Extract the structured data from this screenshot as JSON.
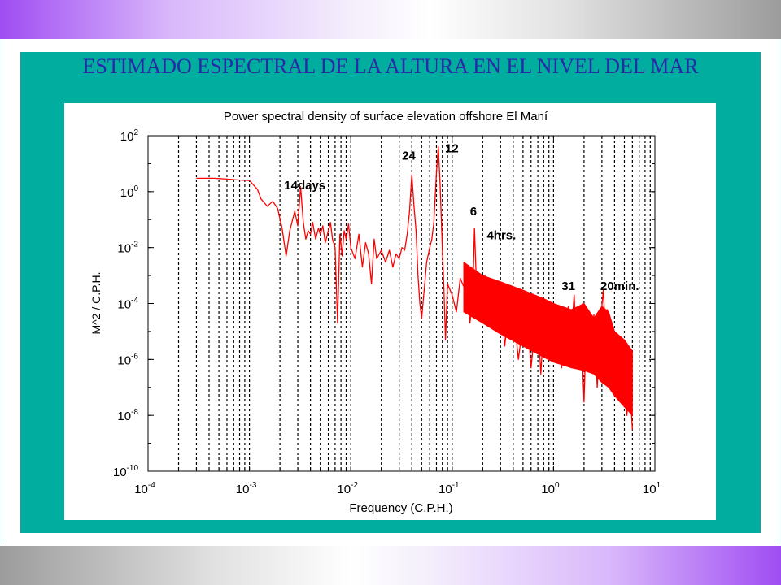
{
  "slide": {
    "title": "ESTIMADO ESPECTRAL DE  LA  ALTURA  EN EL NIVEL DEL MAR"
  },
  "colors": {
    "teal_panel": "#00ad9e",
    "title_text": "#2a2aa8",
    "series": "#ff0000"
  },
  "chart_data": {
    "type": "line",
    "title": "Power spectral density of surface elevation offshore El Maní",
    "xlabel": "Frequency (C.P.H.)",
    "ylabel": "M^2 / C.P.H.",
    "xscale": "log",
    "yscale": "log",
    "xlim": [
      0.0001,
      10
    ],
    "ylim": [
      1e-10,
      100
    ],
    "grid": "vertical dashed lines at decade subdivisions",
    "xticks": [
      {
        "value": 0.0001,
        "base": "10",
        "exp": "-4"
      },
      {
        "value": 0.001,
        "base": "10",
        "exp": "-3"
      },
      {
        "value": 0.01,
        "base": "10",
        "exp": "-2"
      },
      {
        "value": 0.1,
        "base": "10",
        "exp": "-1"
      },
      {
        "value": 1,
        "base": "10",
        "exp": "0"
      },
      {
        "value": 10,
        "base": "10",
        "exp": "1"
      }
    ],
    "yticks": [
      {
        "value": 100,
        "base": "10",
        "exp": "2"
      },
      {
        "value": 1,
        "base": "10",
        "exp": "0"
      },
      {
        "value": 0.01,
        "base": "10",
        "exp": "-2"
      },
      {
        "value": 0.0001,
        "base": "10",
        "exp": "-4"
      },
      {
        "value": 1e-06,
        "base": "10",
        "exp": "-6"
      },
      {
        "value": 1e-08,
        "base": "10",
        "exp": "-8"
      },
      {
        "value": 1e-10,
        "base": "10",
        "exp": "-10"
      }
    ],
    "series": [
      {
        "color": "#ff0000",
        "x": [
          0.0003,
          0.00045,
          0.0006,
          0.0008,
          0.001,
          0.0012,
          0.0013,
          0.0015,
          0.0017,
          0.0019,
          0.0021,
          0.0023,
          0.0025,
          0.0028,
          0.003,
          0.0032,
          0.0034,
          0.0036,
          0.0038,
          0.004,
          0.0042,
          0.0045,
          0.0048,
          0.005,
          0.0053,
          0.0056,
          0.006,
          0.0063,
          0.0066,
          0.007,
          0.0074,
          0.0078,
          0.0082,
          0.0086,
          0.009,
          0.0095,
          0.01,
          0.011,
          0.012,
          0.013,
          0.014,
          0.015,
          0.016,
          0.017,
          0.018,
          0.02,
          0.022,
          0.024,
          0.026,
          0.028,
          0.03,
          0.032,
          0.034,
          0.036,
          0.038,
          0.04,
          0.042,
          0.044,
          0.046,
          0.048,
          0.05,
          0.053,
          0.056,
          0.06,
          0.063,
          0.066,
          0.07,
          0.073,
          0.076,
          0.08,
          0.083,
          0.086,
          0.09,
          0.1,
          0.11,
          0.12,
          0.13,
          0.14,
          0.15,
          0.16,
          0.166,
          0.175,
          0.19,
          0.21,
          0.23,
          0.25,
          0.28,
          0.3,
          0.33,
          0.36,
          0.4,
          0.45,
          0.5,
          0.55,
          0.6,
          0.65,
          0.7,
          0.75,
          0.8,
          0.9,
          1.0,
          1.1,
          1.2,
          1.3,
          1.4,
          1.5,
          1.6,
          1.7,
          1.8,
          1.9,
          2.0,
          2.1,
          2.3,
          2.5,
          2.7,
          2.9,
          3.1,
          3.2,
          3.4,
          3.6,
          3.8,
          4.0,
          4.3,
          4.6,
          5.0,
          5.3,
          5.6,
          6.0
        ],
        "y": [
          3.0,
          3.0,
          2.8,
          2.6,
          2.5,
          1.2,
          0.55,
          0.3,
          0.45,
          0.25,
          0.05,
          0.005,
          0.04,
          0.2,
          0.06,
          1.5,
          0.08,
          0.02,
          0.04,
          0.03,
          0.08,
          0.02,
          0.05,
          0.03,
          0.06,
          0.015,
          0.04,
          0.08,
          0.02,
          0.01,
          2e-05,
          0.03,
          0.005,
          0.04,
          0.02,
          0.07,
          0.01,
          0.004,
          0.03,
          0.002,
          0.015,
          0.006,
          0.0005,
          0.02,
          0.004,
          0.008,
          0.003,
          0.008,
          0.002,
          0.006,
          0.004,
          0.01,
          0.008,
          0.03,
          0.2,
          4.0,
          0.3,
          0.04,
          0.001,
          0.0001,
          3e-05,
          0.0003,
          0.003,
          0.01,
          0.02,
          0.08,
          5.0,
          40.0,
          2.0,
          0.01,
          0.0003,
          5e-06,
          0.0005,
          0.0002,
          5e-05,
          0.0008,
          0.0004,
          0.0003,
          2e-05,
          0.00025,
          0.05,
          0.0002,
          6e-05,
          0.001,
          8e-05,
          2e-05,
          0.0001,
          0.0003,
          3e-06,
          5e-05,
          8e-05,
          1e-06,
          2e-05,
          4e-05,
          5e-07,
          1e-05,
          3e-05,
          3e-07,
          2e-05,
          8e-06,
          1e-06,
          3e-05,
          5e-07,
          1e-05,
          8e-05,
          1e-05,
          0.0002,
          1e-06,
          3e-05,
          4e-06,
          3e-08,
          1e-05,
          2e-06,
          4e-05,
          1e-07,
          2e-05,
          0.0003,
          3e-05,
          6e-05,
          2e-06,
          1e-05,
          1e-07,
          2e-06,
          4e-07,
          2e-07,
          1e-08,
          2e-07,
          3e-09
        ],
        "band_upper": [
          [
            0.13,
            0.003
          ],
          [
            0.2,
            0.001
          ],
          [
            0.3,
            0.0006
          ],
          [
            0.5,
            0.0003
          ],
          [
            0.8,
            0.00015
          ],
          [
            1.0,
            0.0001
          ],
          [
            1.5,
            6e-05
          ],
          [
            2.0,
            0.0001
          ],
          [
            2.5,
            3e-05
          ],
          [
            3.0,
            8e-05
          ],
          [
            3.5,
            5e-05
          ],
          [
            4.0,
            1e-05
          ],
          [
            5.0,
            5e-06
          ],
          [
            6.0,
            2e-06
          ]
        ],
        "band_lower": [
          [
            0.13,
            5e-05
          ],
          [
            0.2,
            2e-05
          ],
          [
            0.3,
            8e-06
          ],
          [
            0.5,
            3e-06
          ],
          [
            0.8,
            1.2e-06
          ],
          [
            1.0,
            8e-07
          ],
          [
            1.5,
            5e-07
          ],
          [
            2.0,
            4e-07
          ],
          [
            2.5,
            3e-07
          ],
          [
            3.0,
            1.5e-07
          ],
          [
            3.5,
            1e-07
          ],
          [
            4.0,
            5e-08
          ],
          [
            5.0,
            2e-08
          ],
          [
            6.0,
            1e-08
          ]
        ]
      }
    ],
    "annotations": [
      {
        "text": "14days",
        "x": 0.0022,
        "y": 1.2
      },
      {
        "text": "24",
        "x": 0.032,
        "y": 14
      },
      {
        "text": "12",
        "x": 0.085,
        "y": 25
      },
      {
        "text": "6",
        "x": 0.15,
        "y": 0.14
      },
      {
        "text": "4hrs.",
        "x": 0.22,
        "y": 0.02
      },
      {
        "text": "31",
        "x": 1.2,
        "y": 0.0003
      },
      {
        "text": "20min.",
        "x": 2.9,
        "y": 0.0003
      }
    ]
  }
}
